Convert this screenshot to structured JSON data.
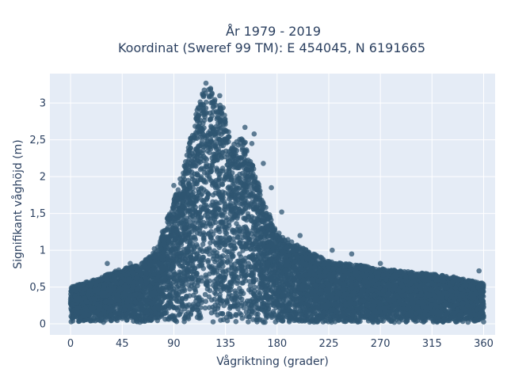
{
  "chart_data": {
    "type": "scatter",
    "title": "År 1979 - 2019",
    "subtitle": "Koordinat (Sweref 99 TM): E 454045, N 6191665",
    "xlabel": "Vågriktning (grader)",
    "ylabel": "Signifikant våghöjd (m)",
    "xlim": [
      -18,
      370
    ],
    "ylim": [
      -0.15,
      3.4
    ],
    "x_ticks": [
      0,
      45,
      90,
      135,
      180,
      225,
      270,
      315,
      360
    ],
    "x_tick_labels": [
      "0",
      "45",
      "90",
      "135",
      "180",
      "225",
      "270",
      "315",
      "360"
    ],
    "y_ticks": [
      0,
      0.5,
      1,
      1.5,
      2,
      2.5,
      3
    ],
    "y_tick_labels": [
      "0",
      "0,5",
      "1",
      "1,5",
      "2",
      "2,5",
      "3"
    ],
    "grid": true,
    "marker_color": "#2f5671",
    "plot_background": "#e5ecf6",
    "envelope_direction": [
      0,
      20,
      45,
      60,
      75,
      90,
      100,
      110,
      115,
      120,
      125,
      130,
      135,
      140,
      150,
      160,
      170,
      180,
      200,
      225,
      250,
      270,
      300,
      330,
      360
    ],
    "envelope_max_height": [
      0.5,
      0.6,
      0.75,
      0.8,
      1.0,
      1.7,
      2.2,
      2.9,
      3.15,
      3.25,
      3.1,
      3.0,
      2.9,
      2.4,
      2.6,
      2.1,
      1.6,
      1.25,
      1.05,
      0.85,
      0.8,
      0.75,
      0.7,
      0.65,
      0.55
    ],
    "outliers": [
      {
        "x": 118,
        "y": 3.27
      },
      {
        "x": 122,
        "y": 3.2
      },
      {
        "x": 130,
        "y": 3.1
      },
      {
        "x": 152,
        "y": 2.67
      },
      {
        "x": 160,
        "y": 2.58
      },
      {
        "x": 149,
        "y": 2.5
      },
      {
        "x": 158,
        "y": 2.45
      },
      {
        "x": 142,
        "y": 2.35
      },
      {
        "x": 168,
        "y": 2.18
      },
      {
        "x": 175,
        "y": 1.85
      },
      {
        "x": 184,
        "y": 1.52
      },
      {
        "x": 200,
        "y": 1.2
      },
      {
        "x": 228,
        "y": 1.0
      },
      {
        "x": 245,
        "y": 0.95
      },
      {
        "x": 270,
        "y": 0.82
      },
      {
        "x": 318,
        "y": 0.67
      },
      {
        "x": 356,
        "y": 0.72
      },
      {
        "x": 32,
        "y": 0.82
      },
      {
        "x": 52,
        "y": 0.82
      },
      {
        "x": 73,
        "y": 1.02
      },
      {
        "x": 80,
        "y": 1.25
      },
      {
        "x": 90,
        "y": 1.88
      }
    ]
  }
}
